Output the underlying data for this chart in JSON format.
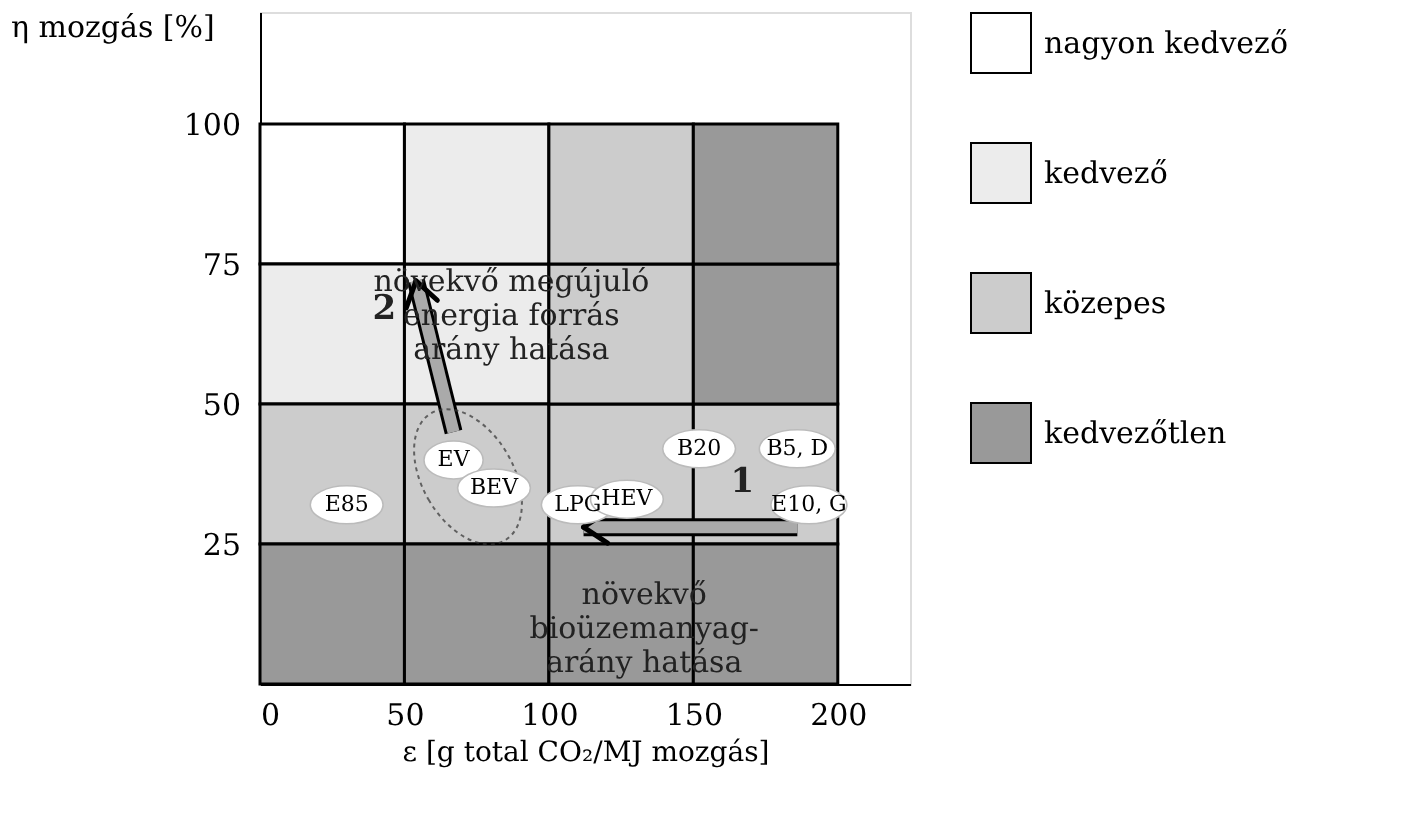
{
  "chart_data": {
    "type": "bar",
    "marker": "circle",
    "ylabel": "η mozgás [%]",
    "xlabel": "ε [g total CO₂/MJ mozgás]",
    "xlim": [
      0,
      225
    ],
    "ylim": [
      0,
      120
    ],
    "xticks": [
      0,
      50,
      100,
      150,
      200
    ],
    "yticks": [
      25,
      50,
      75,
      100
    ],
    "grid": false,
    "legend": "right",
    "x": [
      25,
      75,
      125,
      175
    ],
    "series": [
      {
        "name": "nagyon kedvező",
        "color": "#ffffff",
        "values": [
          25,
          null,
          null,
          null
        ],
        "base": [
          75,
          null,
          null,
          null
        ]
      },
      {
        "name": "kedvező",
        "color": "#ececec",
        "values": [
          25,
          25,
          null,
          null
        ],
        "base": [
          50,
          50,
          null,
          null
        ]
      },
      {
        "name": "közepes",
        "color": "#cccccc",
        "values": [
          25,
          25,
          25,
          25
        ],
        "base": [
          25,
          25,
          25,
          25
        ]
      },
      {
        "name": "kedvezőtlen",
        "color": "#999999",
        "values": [
          25,
          25,
          25,
          25
        ],
        "base": [
          0,
          0,
          0,
          0
        ]
      },
      {
        "color": "#ececec",
        "values": [
          null,
          25,
          null,
          null
        ],
        "base": [
          null,
          75,
          null,
          null
        ]
      },
      {
        "color": "#cccccc",
        "values": [
          null,
          null,
          25,
          null
        ],
        "base": [
          null,
          null,
          50,
          null
        ]
      },
      {
        "color": "#cccccc",
        "values": [
          null,
          null,
          25,
          null
        ],
        "base": [
          null,
          null,
          75,
          null
        ]
      },
      {
        "color": "#999999",
        "values": [
          null,
          null,
          null,
          25
        ],
        "base": [
          null,
          null,
          null,
          50
        ]
      },
      {
        "color": "#999999",
        "values": [
          null,
          null,
          null,
          25
        ],
        "base": [
          null,
          null,
          null,
          75
        ]
      },
      {
        "type": "scatter",
        "name": "E85",
        "color": "#ffffff",
        "x": [
          30
        ],
        "values": [
          32
        ]
      },
      {
        "type": "scatter",
        "name": "EV",
        "color": "#ffffff",
        "x": [
          67
        ],
        "values": [
          40
        ]
      },
      {
        "type": "scatter",
        "name": "BEV",
        "color": "#ffffff",
        "x": [
          81
        ],
        "values": [
          35
        ]
      },
      {
        "type": "scatter",
        "name": "LPG",
        "color": "#ffffff",
        "x": [
          110
        ],
        "values": [
          32
        ]
      },
      {
        "type": "scatter",
        "name": "HEV",
        "color": "#ffffff",
        "x": [
          127
        ],
        "values": [
          33
        ]
      },
      {
        "type": "scatter",
        "name": "B20",
        "color": "#ffffff",
        "x": [
          152
        ],
        "values": [
          42
        ]
      },
      {
        "type": "scatter",
        "name": "B5, D",
        "color": "#ffffff",
        "x": [
          186
        ],
        "values": [
          42
        ]
      },
      {
        "type": "scatter",
        "name": "E10, G",
        "color": "#ffffff",
        "x": [
          190
        ],
        "values": [
          32
        ]
      }
    ],
    "annotations": [
      "növekvő megújuló\nenergia forrás\narány hatása",
      "növekvő\nbioüzemanyag-\narány hatása",
      "1",
      "2"
    ]
  }
}
